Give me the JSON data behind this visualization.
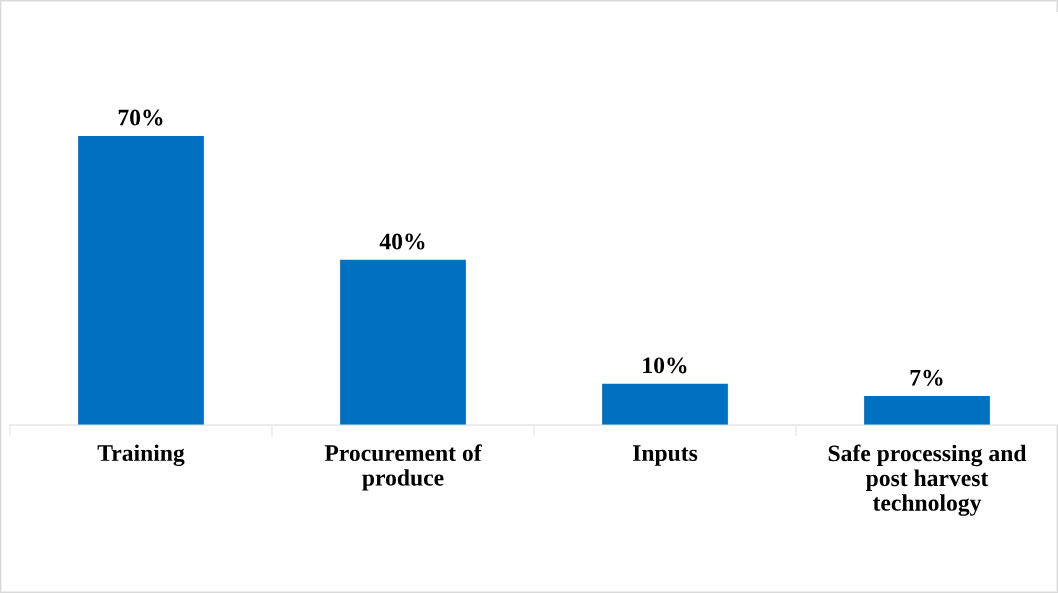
{
  "chart_data": {
    "type": "bar",
    "categories": [
      "Training",
      "Procurement of\nproduce",
      "Inputs",
      "Safe processing and\npost harvest\ntechnology"
    ],
    "values": [
      70,
      40,
      10,
      7
    ],
    "value_labels": [
      "70%",
      "40%",
      "10%",
      "7%"
    ],
    "color": "#0070c0",
    "ylim": [
      0,
      100
    ],
    "tick_labels": "x",
    "grid": false,
    "legend": false
  }
}
